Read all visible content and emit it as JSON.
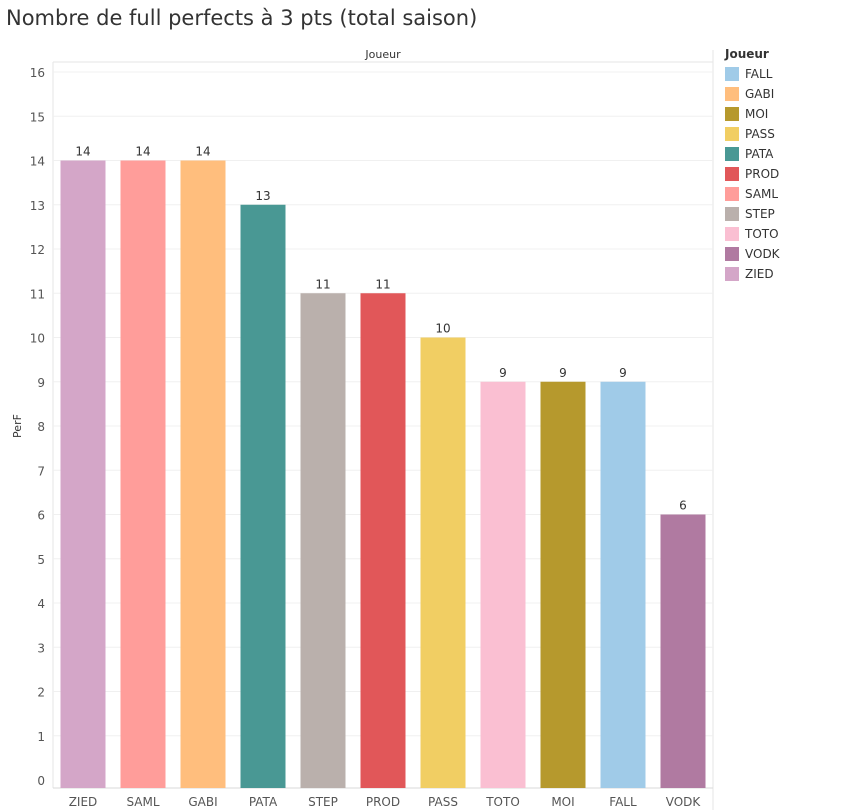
{
  "chart_data": {
    "type": "bar",
    "title": "Nombre de full perfects à 3 pts (total saison)",
    "header": "Joueur",
    "xlabel": "",
    "ylabel": "PerF",
    "ylim": [
      0,
      16
    ],
    "yticks": [
      "0",
      "1",
      "2",
      "3",
      "4",
      "5",
      "6",
      "7",
      "8",
      "9",
      "10",
      "11",
      "12",
      "13",
      "14",
      "15",
      "16"
    ],
    "grid": true,
    "categories": [
      "ZIED",
      "SAML",
      "GABI",
      "PATA",
      "STEP",
      "PROD",
      "PASS",
      "TOTO",
      "MOI",
      "FALL",
      "VODK"
    ],
    "values": [
      14,
      14,
      14,
      13,
      11,
      11,
      10,
      9,
      9,
      9,
      6
    ],
    "colors": [
      "#d4a6c8",
      "#ff9d9a",
      "#ffbe7d",
      "#499894",
      "#bab0ac",
      "#e15759",
      "#f1ce63",
      "#fabfd2",
      "#b6992d",
      "#a0cbe8",
      "#b07aa1"
    ],
    "legend": {
      "title": "Joueur",
      "position": "right",
      "items": [
        {
          "label": "FALL",
          "color": "#a0cbe8"
        },
        {
          "label": "GABI",
          "color": "#ffbe7d"
        },
        {
          "label": "MOI",
          "color": "#b6992d"
        },
        {
          "label": "PASS",
          "color": "#f1ce63"
        },
        {
          "label": "PATA",
          "color": "#499894"
        },
        {
          "label": "PROD",
          "color": "#e15759"
        },
        {
          "label": "SAML",
          "color": "#ff9d9a"
        },
        {
          "label": "STEP",
          "color": "#bab0ac"
        },
        {
          "label": "TOTO",
          "color": "#fabfd2"
        },
        {
          "label": "VODK",
          "color": "#b07aa1"
        },
        {
          "label": "ZIED",
          "color": "#d4a6c8"
        }
      ]
    }
  }
}
